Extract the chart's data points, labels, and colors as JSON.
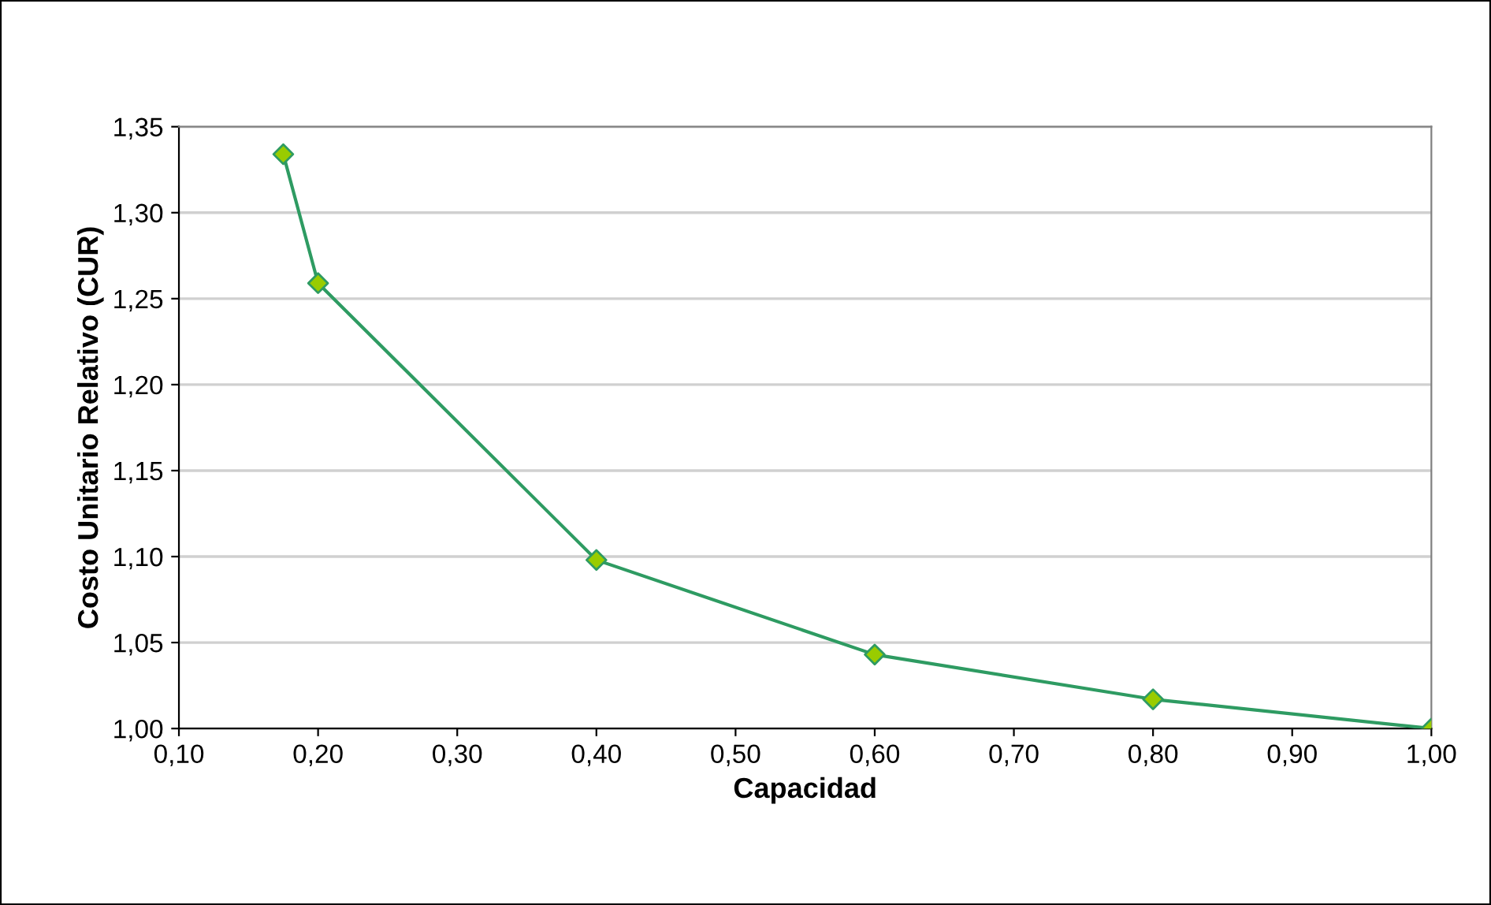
{
  "chart_data": {
    "type": "line",
    "xlabel": "Capacidad",
    "ylabel": "Costo Unitario Relativo (CUR)",
    "x": [
      0.175,
      0.2,
      0.4,
      0.6,
      0.8,
      1.0
    ],
    "series": [
      {
        "color": "#2e9b62",
        "values": [
          1.334,
          1.259,
          1.098,
          1.043,
          1.017,
          1.0
        ]
      }
    ],
    "marker": "diamond",
    "line_style": "solid",
    "grid": "y",
    "xlim": [
      0.1,
      1.0
    ],
    "xticks": [
      {
        "value": 0.1,
        "label": "0,10"
      },
      {
        "value": 0.2,
        "label": "0,20"
      },
      {
        "value": 0.3,
        "label": "0,30"
      },
      {
        "value": 0.4,
        "label": "0,40"
      },
      {
        "value": 0.5,
        "label": "0,50"
      },
      {
        "value": 0.6,
        "label": "0,60"
      },
      {
        "value": 0.7,
        "label": "0,70"
      },
      {
        "value": 0.8,
        "label": "0,80"
      },
      {
        "value": 0.9,
        "label": "0,90"
      },
      {
        "value": 1.0,
        "label": "1,00"
      }
    ],
    "ylim": [
      1.0,
      1.35
    ],
    "yticks": [
      {
        "value": 1.0,
        "label": "1,00"
      },
      {
        "value": 1.05,
        "label": "1,05"
      },
      {
        "value": 1.1,
        "label": "1,10"
      },
      {
        "value": 1.15,
        "label": "1,15"
      },
      {
        "value": 1.2,
        "label": "1,20"
      },
      {
        "value": 1.25,
        "label": "1,25"
      },
      {
        "value": 1.3,
        "label": "1,30"
      },
      {
        "value": 1.35,
        "label": "1,35"
      }
    ]
  }
}
